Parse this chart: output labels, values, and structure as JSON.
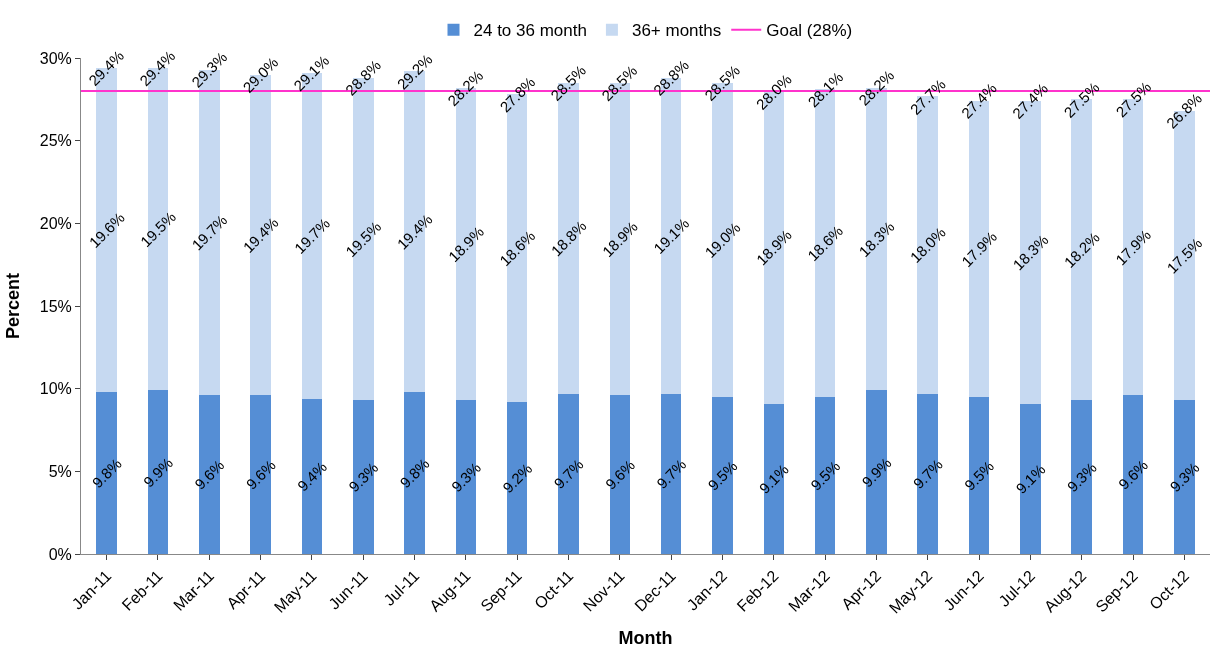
{
  "chart_data": {
    "type": "bar",
    "stacked": true,
    "xlabel": "Month",
    "ylabel": "Percent",
    "categories": [
      "Jan-11",
      "Feb-11",
      "Mar-11",
      "Apr-11",
      "May-11",
      "Jun-11",
      "Jul-11",
      "Aug-11",
      "Sep-11",
      "Oct-11",
      "Nov-11",
      "Dec-11",
      "Jan-12",
      "Feb-12",
      "Mar-12",
      "Apr-12",
      "May-12",
      "Jun-12",
      "Jul-12",
      "Aug-12",
      "Sep-12",
      "Oct-12"
    ],
    "series": [
      {
        "name": "24 to 36 month",
        "color": "#558ed5",
        "values": [
          9.8,
          9.9,
          9.6,
          9.6,
          9.4,
          9.3,
          9.8,
          9.3,
          9.2,
          9.7,
          9.6,
          9.7,
          9.5,
          9.1,
          9.5,
          9.9,
          9.7,
          9.5,
          9.1,
          9.3,
          9.6,
          9.3
        ],
        "value_labels": [
          "9.8%",
          "9.9%",
          "9.6%",
          "9.6%",
          "9.4%",
          "9.3%",
          "9.8%",
          "9.3%",
          "9.2%",
          "9.7%",
          "9.6%",
          "9.7%",
          "9.5%",
          "9.1%",
          "9.5%",
          "9.9%",
          "9.7%",
          "9.5%",
          "9.1%",
          "9.3%",
          "9.6%",
          "9.3%"
        ]
      },
      {
        "name": "36+ months",
        "color": "#c6d9f1",
        "values": [
          19.6,
          19.5,
          19.7,
          19.4,
          19.7,
          19.5,
          19.4,
          18.9,
          18.6,
          18.8,
          18.9,
          19.1,
          19.0,
          18.9,
          18.6,
          18.3,
          18.0,
          17.9,
          18.3,
          18.2,
          17.9,
          17.5
        ],
        "value_labels": [
          "19.6%",
          "19.5%",
          "19.7%",
          "19.4%",
          "19.7%",
          "19.5%",
          "19.4%",
          "18.9%",
          "18.6%",
          "18.8%",
          "18.9%",
          "19.1%",
          "19.0%",
          "18.9%",
          "18.6%",
          "18.3%",
          "18.0%",
          "17.9%",
          "18.3%",
          "18.2%",
          "17.9%",
          "17.5%"
        ]
      }
    ],
    "totals": [
      "29.4%",
      "29.4%",
      "29.3%",
      "29.0%",
      "29.1%",
      "28.8%",
      "29.2%",
      "28.2%",
      "27.8%",
      "28.5%",
      "28.5%",
      "28.8%",
      "28.5%",
      "28.0%",
      "28.1%",
      "28.2%",
      "27.7%",
      "27.4%",
      "27.4%",
      "27.5%",
      "27.5%",
      "26.8%"
    ],
    "ref_lines": [
      {
        "axis": "y",
        "value": 28,
        "label": "Goal (28%)",
        "color": "#ff33cc",
        "line_style": "solid"
      }
    ],
    "ylim": [
      0,
      30
    ],
    "yticks": [
      {
        "value": 0,
        "label": "0%"
      },
      {
        "value": 5,
        "label": "5%"
      },
      {
        "value": 10,
        "label": "10%"
      },
      {
        "value": 15,
        "label": "15%"
      },
      {
        "value": 20,
        "label": "20%"
      },
      {
        "value": 25,
        "label": "25%"
      },
      {
        "value": 30,
        "label": "30%"
      }
    ],
    "legend": "top"
  }
}
